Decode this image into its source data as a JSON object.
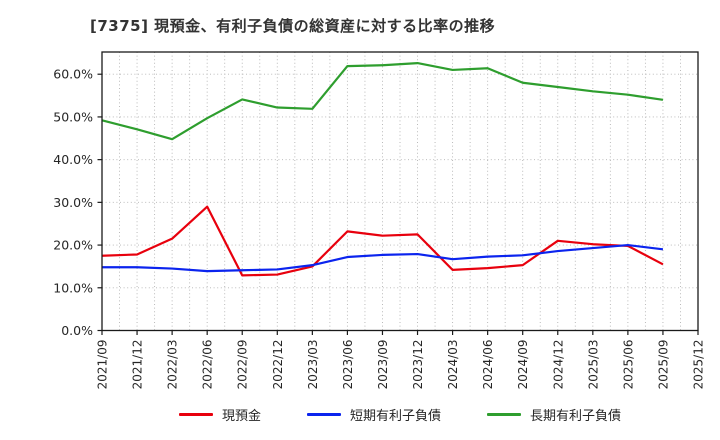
{
  "title": "[7375]  現預金、有利子負債の総資産に対する比率の推移",
  "chart_data": {
    "type": "line",
    "title": "[7375]  現預金、有利子負債の総資産に対する比率の推移",
    "categories": [
      "2021/09",
      "2021/12",
      "2022/03",
      "2022/06",
      "2022/09",
      "2022/12",
      "2023/03",
      "2023/06",
      "2023/09",
      "2023/12",
      "2024/03",
      "2024/06",
      "2024/09",
      "2024/12",
      "2025/03",
      "2025/06",
      "2025/09",
      "2025/12"
    ],
    "series": [
      {
        "key": "cash",
        "name": "現預金",
        "color": "#e8000d",
        "values": [
          17.5,
          17.8,
          21.5,
          29.0,
          12.9,
          13.1,
          15.0,
          23.2,
          22.2,
          22.5,
          14.2,
          14.6,
          15.3,
          21.0,
          20.2,
          19.8,
          15.5,
          null
        ]
      },
      {
        "key": "short-term-debt",
        "name": "短期有利子負債",
        "color": "#0b24ee",
        "values": [
          14.8,
          14.8,
          14.5,
          13.9,
          14.1,
          14.3,
          15.3,
          17.2,
          17.7,
          17.9,
          16.7,
          17.3,
          17.6,
          18.6,
          19.3,
          20.0,
          19.0,
          null
        ]
      },
      {
        "key": "long-term-debt",
        "name": "長期有利子負債",
        "color": "#2e9e2e",
        "values": [
          49.2,
          47.1,
          44.8,
          49.7,
          54.1,
          52.2,
          51.9,
          61.9,
          62.1,
          62.6,
          61.0,
          61.4,
          58.0,
          57.0,
          56.0,
          55.2,
          54.0,
          null
        ]
      }
    ],
    "ytick_values": [
      0,
      10,
      20,
      30,
      40,
      50,
      60
    ],
    "ytick_labels": [
      "0.0%",
      "10.0%",
      "20.0%",
      "30.0%",
      "40.0%",
      "50.0%",
      "60.0%"
    ],
    "ylim": [
      0,
      65.2
    ],
    "xlabel": "",
    "ylabel": "",
    "grid": {
      "style": "dotted",
      "color": "#b3b3b3",
      "horizontal": "major-10pct",
      "vertical": "categories-and-midpoints"
    },
    "axis_color": "#1a1a1a",
    "tick_text_color": "#262626",
    "legend_position": "bottom-center"
  }
}
